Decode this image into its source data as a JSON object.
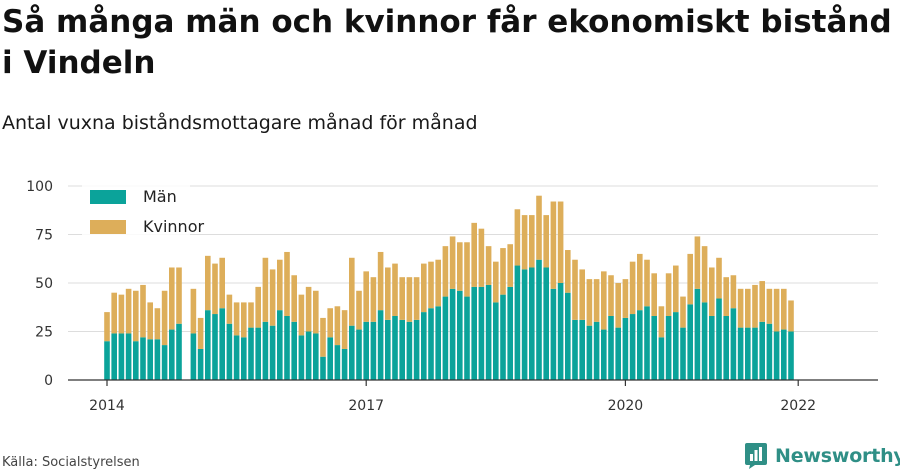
{
  "title": "Så många män och kvinnor får ekonomiskt bistånd i Vindeln",
  "subtitle": "Antal vuxna biståndsmottagare månad för månad",
  "source": "Källa: Socialstyrelsen",
  "brand": "Newsworthy",
  "colors": {
    "man": "#0ba39a",
    "kvinnor": "#ddae5a",
    "grid": "#dddddd",
    "axis": "#333333",
    "brand": "#2f8f86"
  },
  "chart_data": {
    "type": "bar",
    "stacked": true,
    "x_start": "2014-01",
    "x_end": "2021-12",
    "x_tick_labels": [
      "2014",
      "2017",
      "2020",
      "2022"
    ],
    "y_ticks": [
      0,
      25,
      50,
      75,
      100
    ],
    "ylim": [
      0,
      100
    ],
    "legend_position": "top-left",
    "series": [
      {
        "name": "Män",
        "color": "#0ba39a",
        "values": [
          20,
          24,
          24,
          24,
          20,
          22,
          21,
          21,
          18,
          26,
          29,
          null,
          24,
          16,
          36,
          34,
          37,
          29,
          23,
          22,
          27,
          27,
          30,
          28,
          36,
          33,
          30,
          23,
          25,
          24,
          12,
          22,
          18,
          16,
          28,
          26,
          30,
          30,
          36,
          31,
          33,
          31,
          30,
          31,
          35,
          37,
          38,
          43,
          47,
          46,
          43,
          48,
          48,
          49,
          40,
          44,
          48,
          59,
          57,
          58,
          62,
          58,
          47,
          50,
          45,
          31,
          31,
          28,
          30,
          26,
          33,
          27,
          32,
          34,
          36,
          38,
          33,
          22,
          33,
          35,
          27,
          39,
          47,
          40,
          33,
          42,
          33,
          37,
          27,
          27,
          27,
          30,
          29,
          25,
          26,
          25
        ]
      },
      {
        "name": "Kvinnor",
        "color": "#ddae5a",
        "values": [
          15,
          21,
          20,
          23,
          26,
          27,
          19,
          16,
          28,
          32,
          29,
          null,
          23,
          16,
          28,
          26,
          26,
          15,
          17,
          18,
          13,
          21,
          33,
          29,
          26,
          33,
          24,
          21,
          23,
          22,
          20,
          15,
          20,
          20,
          35,
          20,
          26,
          23,
          30,
          27,
          27,
          22,
          23,
          22,
          25,
          24,
          24,
          26,
          27,
          25,
          28,
          33,
          30,
          20,
          21,
          24,
          22,
          29,
          28,
          27,
          33,
          27,
          45,
          42,
          22,
          31,
          26,
          24,
          22,
          30,
          21,
          23,
          20,
          27,
          29,
          24,
          22,
          16,
          22,
          24,
          16,
          26,
          27,
          29,
          25,
          21,
          20,
          17,
          20,
          20,
          22,
          21,
          18,
          22,
          21,
          16
        ]
      }
    ]
  }
}
